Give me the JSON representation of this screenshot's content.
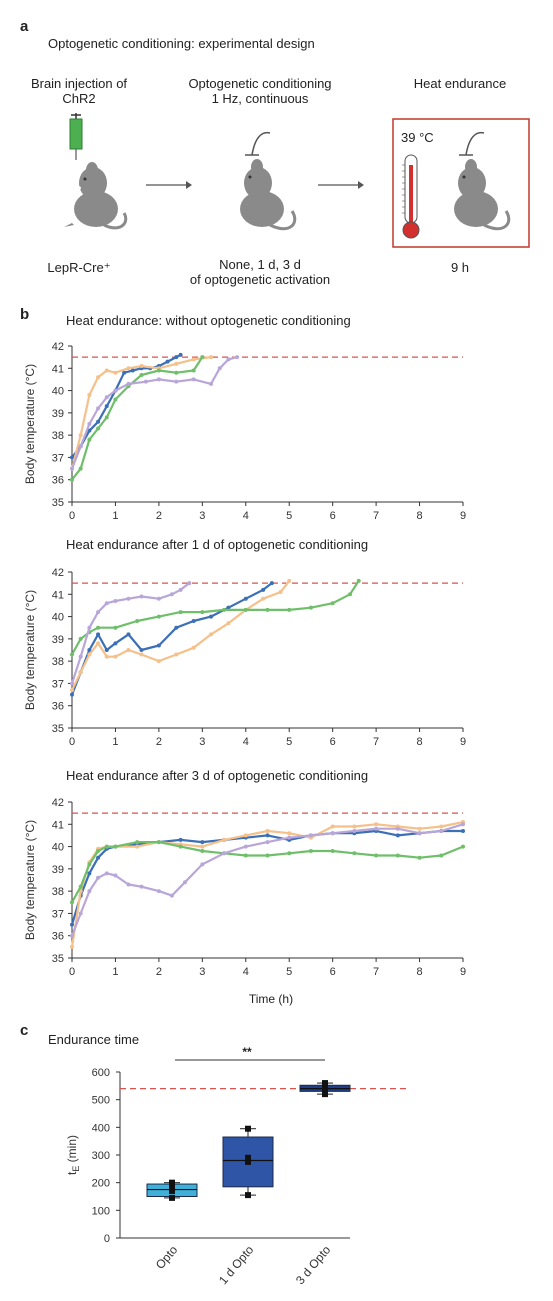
{
  "panel_a": {
    "letter": "a",
    "title": "Optogenetic conditioning: experimental design",
    "step1_title": "Brain injection of\nChR2",
    "step1_label": "LepR-Cre⁺",
    "step2_title": "Optogenetic conditioning\n1 Hz, continuous",
    "step2_label": "None, 1 d, 3 d\nof optogenetic activation",
    "step3_title": "Heat endurance",
    "step3_temp": "39 °C",
    "step3_label": "9 h",
    "colors": {
      "syringe": "#4caf50",
      "mouse": "#8a8a8a",
      "box": "#c0392b",
      "thermo": "#d32f2f"
    }
  },
  "panel_b": {
    "letter": "b",
    "colors": {
      "blue": "#3b6fb6",
      "orange": "#f5c089",
      "green": "#6fbf6a",
      "purple": "#b9a6d9",
      "threshold": "#d9534f"
    }
  },
  "panel_c": {
    "letter": "c",
    "title": "Endurance time",
    "significance": "**"
  },
  "chart_data": [
    {
      "type": "line",
      "title": "Heat endurance: without optogenetic conditioning",
      "xlabel": "",
      "ylabel": "Body temperature (°C)",
      "xlim": [
        0,
        9
      ],
      "ylim": [
        35,
        42
      ],
      "xticks": [
        "0",
        "1",
        "2",
        "3",
        "4",
        "5",
        "6",
        "7",
        "8",
        "9"
      ],
      "yticks": [
        "35",
        "36",
        "37",
        "38",
        "39",
        "40",
        "41",
        "42"
      ],
      "threshold": 41.5,
      "series": [
        {
          "color": "#3b6fb6",
          "x": [
            0,
            0.2,
            0.4,
            0.6,
            0.8,
            1.0,
            1.2,
            1.4,
            1.6,
            1.8,
            2.0,
            2.2,
            2.4,
            2.5
          ],
          "y": [
            37.0,
            37.5,
            38.2,
            38.6,
            39.3,
            40.0,
            40.8,
            40.9,
            41.0,
            41.0,
            41.1,
            41.3,
            41.5,
            41.6
          ]
        },
        {
          "color": "#f5c089",
          "x": [
            0,
            0.2,
            0.4,
            0.6,
            0.8,
            1.0,
            1.3,
            1.6,
            2.0,
            2.4,
            2.8,
            3.2
          ],
          "y": [
            36.5,
            38.0,
            39.8,
            40.6,
            40.9,
            40.8,
            41.0,
            41.1,
            41.0,
            41.2,
            41.4,
            41.5
          ]
        },
        {
          "color": "#6fbf6a",
          "x": [
            0,
            0.2,
            0.4,
            0.6,
            0.8,
            1.0,
            1.3,
            1.6,
            2.0,
            2.4,
            2.8,
            3.0
          ],
          "y": [
            36.0,
            36.5,
            37.8,
            38.3,
            38.8,
            39.6,
            40.2,
            40.7,
            40.9,
            40.8,
            40.9,
            41.5
          ]
        },
        {
          "color": "#b9a6d9",
          "x": [
            0,
            0.2,
            0.4,
            0.6,
            0.8,
            1.0,
            1.3,
            1.7,
            2.0,
            2.4,
            2.8,
            3.2,
            3.4,
            3.6,
            3.8
          ],
          "y": [
            36.5,
            37.5,
            38.5,
            39.2,
            39.7,
            40.0,
            40.3,
            40.4,
            40.5,
            40.4,
            40.5,
            40.3,
            41.0,
            41.4,
            41.5
          ]
        }
      ]
    },
    {
      "type": "line",
      "title": "Heat endurance after 1 d of optogenetic conditioning",
      "xlabel": "",
      "ylabel": "Body temperature (°C)",
      "xlim": [
        0,
        9
      ],
      "ylim": [
        35,
        42
      ],
      "xticks": [
        "0",
        "1",
        "2",
        "3",
        "4",
        "5",
        "6",
        "7",
        "8",
        "9"
      ],
      "yticks": [
        "35",
        "36",
        "37",
        "38",
        "39",
        "40",
        "41",
        "42"
      ],
      "threshold": 41.5,
      "series": [
        {
          "color": "#3b6fb6",
          "x": [
            0,
            0.2,
            0.4,
            0.6,
            0.8,
            1.0,
            1.3,
            1.6,
            2.0,
            2.4,
            2.8,
            3.2,
            3.6,
            4.0,
            4.4,
            4.6
          ],
          "y": [
            36.5,
            37.5,
            38.5,
            39.2,
            38.5,
            38.8,
            39.2,
            38.5,
            38.7,
            39.5,
            39.8,
            40.0,
            40.4,
            40.8,
            41.2,
            41.5
          ]
        },
        {
          "color": "#f5c089",
          "x": [
            0,
            0.2,
            0.4,
            0.6,
            0.8,
            1.0,
            1.3,
            1.6,
            2.0,
            2.4,
            2.8,
            3.2,
            3.6,
            4.0,
            4.4,
            4.8,
            5.0
          ],
          "y": [
            36.7,
            37.5,
            38.3,
            38.8,
            38.2,
            38.2,
            38.5,
            38.3,
            38.0,
            38.3,
            38.6,
            39.2,
            39.7,
            40.3,
            40.8,
            41.1,
            41.6
          ]
        },
        {
          "color": "#6fbf6a",
          "x": [
            0,
            0.2,
            0.4,
            0.6,
            1.0,
            1.5,
            2.0,
            2.5,
            3.0,
            3.5,
            4.0,
            4.5,
            5.0,
            5.5,
            6.0,
            6.4,
            6.6
          ],
          "y": [
            38.3,
            39.0,
            39.3,
            39.5,
            39.5,
            39.8,
            40.0,
            40.2,
            40.2,
            40.3,
            40.3,
            40.3,
            40.3,
            40.4,
            40.6,
            41.0,
            41.6
          ]
        },
        {
          "color": "#b9a6d9",
          "x": [
            0,
            0.2,
            0.4,
            0.6,
            0.8,
            1.0,
            1.3,
            1.6,
            2.0,
            2.3,
            2.5,
            2.7
          ],
          "y": [
            37.0,
            38.2,
            39.5,
            40.2,
            40.6,
            40.7,
            40.8,
            40.9,
            40.8,
            41.0,
            41.2,
            41.5
          ]
        }
      ]
    },
    {
      "type": "line",
      "title": "Heat endurance after 3 d of optogenetic conditioning",
      "xlabel": "Time (h)",
      "ylabel": "Body temperature (°C)",
      "xlim": [
        0,
        9
      ],
      "ylim": [
        35,
        42
      ],
      "xticks": [
        "0",
        "1",
        "2",
        "3",
        "4",
        "5",
        "6",
        "7",
        "8",
        "9"
      ],
      "yticks": [
        "35",
        "36",
        "37",
        "38",
        "39",
        "40",
        "41",
        "42"
      ],
      "threshold": 41.5,
      "series": [
        {
          "color": "#3b6fb6",
          "x": [
            0,
            0.2,
            0.4,
            0.6,
            0.8,
            1.0,
            1.5,
            2.0,
            2.5,
            3.0,
            3.5,
            4.0,
            4.5,
            5.0,
            5.5,
            6.0,
            6.5,
            7.0,
            7.5,
            8.0,
            8.5,
            9.0
          ],
          "y": [
            36.5,
            37.8,
            38.8,
            39.5,
            39.9,
            40.0,
            40.1,
            40.2,
            40.3,
            40.2,
            40.3,
            40.4,
            40.5,
            40.3,
            40.5,
            40.6,
            40.6,
            40.7,
            40.5,
            40.6,
            40.7,
            40.7
          ]
        },
        {
          "color": "#f5c089",
          "x": [
            0,
            0.2,
            0.4,
            0.6,
            0.8,
            1.0,
            1.5,
            2.0,
            2.5,
            3.0,
            3.5,
            4.0,
            4.5,
            5.0,
            5.5,
            6.0,
            6.5,
            7.0,
            7.5,
            8.0,
            8.5,
            9.0
          ],
          "y": [
            35.5,
            38.0,
            39.3,
            39.9,
            40.0,
            40.0,
            40.0,
            40.2,
            40.1,
            40.0,
            40.3,
            40.5,
            40.7,
            40.6,
            40.4,
            40.9,
            40.9,
            41.0,
            40.9,
            40.8,
            40.9,
            41.1
          ]
        },
        {
          "color": "#6fbf6a",
          "x": [
            0,
            0.2,
            0.4,
            0.6,
            0.8,
            1.0,
            1.5,
            2.0,
            2.5,
            3.0,
            3.5,
            4.0,
            4.5,
            5.0,
            5.5,
            6.0,
            6.5,
            7.0,
            7.5,
            8.0,
            8.5,
            9.0
          ],
          "y": [
            37.5,
            38.2,
            39.2,
            39.8,
            40.0,
            40.0,
            40.2,
            40.2,
            40.0,
            39.8,
            39.7,
            39.6,
            39.6,
            39.7,
            39.8,
            39.8,
            39.7,
            39.6,
            39.6,
            39.5,
            39.6,
            40.0
          ]
        },
        {
          "color": "#b9a6d9",
          "x": [
            0,
            0.2,
            0.4,
            0.6,
            0.8,
            1.0,
            1.3,
            1.6,
            2.0,
            2.3,
            2.6,
            3.0,
            3.5,
            4.0,
            4.5,
            5.0,
            5.5,
            6.0,
            6.5,
            7.0,
            7.5,
            8.0,
            8.5,
            9.0
          ],
          "y": [
            36.0,
            37.0,
            38.0,
            38.6,
            38.8,
            38.7,
            38.3,
            38.2,
            38.0,
            37.8,
            38.4,
            39.2,
            39.7,
            40.0,
            40.2,
            40.4,
            40.5,
            40.6,
            40.7,
            40.8,
            40.8,
            40.6,
            40.7,
            41.0
          ]
        }
      ]
    },
    {
      "type": "box",
      "title": "Endurance time",
      "xlabel": "",
      "ylabel": "tₑ (min)",
      "ylabel_main": "t",
      "ylabel_sub": "E",
      "ylabel_unit": "(min)",
      "ylim": [
        0,
        600
      ],
      "yticks": [
        "0",
        "100",
        "200",
        "300",
        "400",
        "500",
        "600"
      ],
      "threshold": 540,
      "categories": [
        "Opto",
        "1 d Opto",
        "3 d Opto"
      ],
      "colors": [
        "#3fb0d8",
        "#2f56a6",
        "#1f3f8a"
      ],
      "boxes": [
        {
          "min": 145,
          "q1": 150,
          "median": 175,
          "q3": 195,
          "max": 200,
          "points": [
            145,
            170,
            185,
            200
          ]
        },
        {
          "min": 155,
          "q1": 185,
          "median": 280,
          "q3": 365,
          "max": 395,
          "points": [
            155,
            275,
            290,
            395
          ]
        },
        {
          "min": 520,
          "q1": 530,
          "median": 540,
          "q3": 552,
          "max": 560,
          "points": [
            520,
            535,
            545,
            560
          ]
        }
      ]
    }
  ]
}
